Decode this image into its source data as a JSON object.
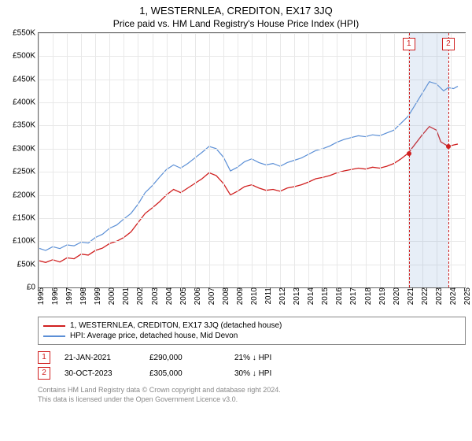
{
  "title": "1, WESTERNLEA, CREDITON, EX17 3JQ",
  "subtitle": "Price paid vs. HM Land Registry's House Price Index (HPI)",
  "chart": {
    "type": "line",
    "ylim": [
      0,
      550000
    ],
    "ytick_step": 50000,
    "yticks": [
      "£0",
      "£50K",
      "£100K",
      "£150K",
      "£200K",
      "£250K",
      "£300K",
      "£350K",
      "£400K",
      "£450K",
      "£500K",
      "£550K"
    ],
    "xlim": [
      1995,
      2025
    ],
    "xticks": [
      1995,
      1996,
      1997,
      1998,
      1999,
      2000,
      2001,
      2002,
      2003,
      2004,
      2005,
      2006,
      2007,
      2008,
      2009,
      2010,
      2011,
      2012,
      2013,
      2014,
      2015,
      2016,
      2017,
      2018,
      2019,
      2020,
      2021,
      2022,
      2023,
      2024,
      2025
    ],
    "grid_color": "#e8e8e8",
    "background_color": "#ffffff",
    "border_color": "#666666",
    "shaded_region": {
      "from": 2021.06,
      "to": 2023.83,
      "color": "rgba(120,160,210,0.18)"
    },
    "vlines": [
      {
        "x": 2021.06,
        "color": "#d02020",
        "label": "1"
      },
      {
        "x": 2023.83,
        "color": "#d02020",
        "label": "2"
      }
    ],
    "series": [
      {
        "name": "property",
        "label": "1, WESTERNLEA, CREDITON, EX17 3JQ (detached house)",
        "color": "#d02020",
        "line_width": 1.3,
        "points": [
          [
            1995.0,
            58000
          ],
          [
            1995.5,
            54000
          ],
          [
            1996.0,
            60000
          ],
          [
            1996.5,
            55000
          ],
          [
            1997.0,
            64000
          ],
          [
            1997.5,
            62000
          ],
          [
            1998.0,
            72000
          ],
          [
            1998.5,
            70000
          ],
          [
            1999.0,
            80000
          ],
          [
            1999.5,
            85000
          ],
          [
            2000.0,
            95000
          ],
          [
            2000.5,
            100000
          ],
          [
            2001.0,
            108000
          ],
          [
            2001.5,
            120000
          ],
          [
            2002.0,
            140000
          ],
          [
            2002.5,
            160000
          ],
          [
            2003.0,
            172000
          ],
          [
            2003.5,
            185000
          ],
          [
            2004.0,
            200000
          ],
          [
            2004.5,
            212000
          ],
          [
            2005.0,
            205000
          ],
          [
            2005.5,
            215000
          ],
          [
            2006.0,
            225000
          ],
          [
            2006.5,
            235000
          ],
          [
            2007.0,
            248000
          ],
          [
            2007.5,
            242000
          ],
          [
            2008.0,
            225000
          ],
          [
            2008.5,
            200000
          ],
          [
            2009.0,
            208000
          ],
          [
            2009.5,
            218000
          ],
          [
            2010.0,
            222000
          ],
          [
            2010.5,
            215000
          ],
          [
            2011.0,
            210000
          ],
          [
            2011.5,
            212000
          ],
          [
            2012.0,
            208000
          ],
          [
            2012.5,
            215000
          ],
          [
            2013.0,
            218000
          ],
          [
            2013.5,
            222000
          ],
          [
            2014.0,
            228000
          ],
          [
            2014.5,
            235000
          ],
          [
            2015.0,
            238000
          ],
          [
            2015.5,
            242000
          ],
          [
            2016.0,
            248000
          ],
          [
            2016.5,
            252000
          ],
          [
            2017.0,
            255000
          ],
          [
            2017.5,
            258000
          ],
          [
            2018.0,
            256000
          ],
          [
            2018.5,
            260000
          ],
          [
            2019.0,
            258000
          ],
          [
            2019.5,
            262000
          ],
          [
            2020.0,
            268000
          ],
          [
            2020.5,
            278000
          ],
          [
            2021.0,
            290000
          ],
          [
            2021.5,
            310000
          ],
          [
            2022.0,
            330000
          ],
          [
            2022.5,
            348000
          ],
          [
            2023.0,
            340000
          ],
          [
            2023.3,
            315000
          ],
          [
            2023.83,
            305000
          ],
          [
            2024.2,
            308000
          ],
          [
            2024.5,
            310000
          ]
        ],
        "dots": [
          {
            "x": 2021.06,
            "y": 290000
          },
          {
            "x": 2023.83,
            "y": 305000
          }
        ]
      },
      {
        "name": "hpi",
        "label": "HPI: Average price, detached house, Mid Devon",
        "color": "#5b8fd6",
        "line_width": 1.2,
        "points": [
          [
            1995.0,
            85000
          ],
          [
            1995.5,
            80000
          ],
          [
            1996.0,
            88000
          ],
          [
            1996.5,
            84000
          ],
          [
            1997.0,
            92000
          ],
          [
            1997.5,
            90000
          ],
          [
            1998.0,
            98000
          ],
          [
            1998.5,
            96000
          ],
          [
            1999.0,
            108000
          ],
          [
            1999.5,
            115000
          ],
          [
            2000.0,
            128000
          ],
          [
            2000.5,
            135000
          ],
          [
            2001.0,
            148000
          ],
          [
            2001.5,
            160000
          ],
          [
            2002.0,
            180000
          ],
          [
            2002.5,
            205000
          ],
          [
            2003.0,
            220000
          ],
          [
            2003.5,
            238000
          ],
          [
            2004.0,
            255000
          ],
          [
            2004.5,
            265000
          ],
          [
            2005.0,
            258000
          ],
          [
            2005.5,
            268000
          ],
          [
            2006.0,
            280000
          ],
          [
            2006.5,
            292000
          ],
          [
            2007.0,
            305000
          ],
          [
            2007.5,
            300000
          ],
          [
            2008.0,
            282000
          ],
          [
            2008.5,
            252000
          ],
          [
            2009.0,
            260000
          ],
          [
            2009.5,
            272000
          ],
          [
            2010.0,
            278000
          ],
          [
            2010.5,
            270000
          ],
          [
            2011.0,
            265000
          ],
          [
            2011.5,
            268000
          ],
          [
            2012.0,
            262000
          ],
          [
            2012.5,
            270000
          ],
          [
            2013.0,
            275000
          ],
          [
            2013.5,
            280000
          ],
          [
            2014.0,
            288000
          ],
          [
            2014.5,
            296000
          ],
          [
            2015.0,
            300000
          ],
          [
            2015.5,
            306000
          ],
          [
            2016.0,
            314000
          ],
          [
            2016.5,
            320000
          ],
          [
            2017.0,
            324000
          ],
          [
            2017.5,
            328000
          ],
          [
            2018.0,
            326000
          ],
          [
            2018.5,
            330000
          ],
          [
            2019.0,
            328000
          ],
          [
            2019.5,
            334000
          ],
          [
            2020.0,
            340000
          ],
          [
            2020.5,
            355000
          ],
          [
            2021.0,
            370000
          ],
          [
            2021.5,
            395000
          ],
          [
            2022.0,
            420000
          ],
          [
            2022.5,
            445000
          ],
          [
            2023.0,
            440000
          ],
          [
            2023.5,
            425000
          ],
          [
            2023.83,
            432000
          ],
          [
            2024.2,
            430000
          ],
          [
            2024.5,
            435000
          ]
        ]
      }
    ]
  },
  "legend": {
    "items": [
      {
        "color": "#d02020",
        "label": "1, WESTERNLEA, CREDITON, EX17 3JQ (detached house)"
      },
      {
        "color": "#5b8fd6",
        "label": "HPI: Average price, detached house, Mid Devon"
      }
    ]
  },
  "transactions": [
    {
      "n": "1",
      "color": "#d02020",
      "date": "21-JAN-2021",
      "price": "£290,000",
      "change": "21% ↓ HPI"
    },
    {
      "n": "2",
      "color": "#d02020",
      "date": "30-OCT-2023",
      "price": "£305,000",
      "change": "30% ↓ HPI"
    }
  ],
  "footer": {
    "line1": "Contains HM Land Registry data © Crown copyright and database right 2024.",
    "line2": "This data is licensed under the Open Government Licence v3.0."
  }
}
